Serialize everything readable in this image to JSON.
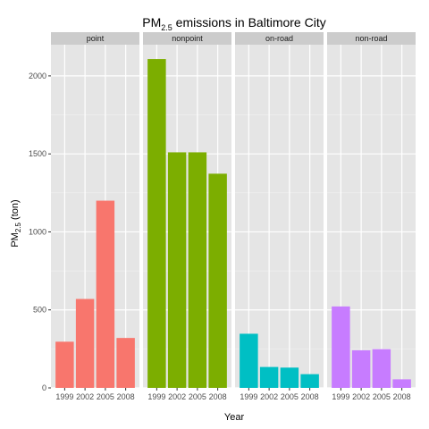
{
  "chart_data": {
    "type": "bar",
    "title": {
      "main": "PM",
      "sub": "2.5",
      "rest": " emissions in Baltimore City"
    },
    "xlabel": "Year",
    "ylabel": {
      "main": "PM",
      "sub": "2.5",
      "rest": " (ton)"
    },
    "ylim": [
      0,
      2200
    ],
    "yticks": [
      0,
      500,
      1000,
      1500,
      2000
    ],
    "ytick_labels": [
      "0",
      "500",
      "1000",
      "1500",
      "2000"
    ],
    "categories": [
      "1999",
      "2002",
      "2005",
      "2008"
    ],
    "grid": true,
    "legend": "none",
    "panels": [
      {
        "name": "point",
        "color": "#F8766D",
        "values": [
          296,
          570,
          1200,
          320
        ]
      },
      {
        "name": "nonpoint",
        "color": "#7CAE00",
        "values": [
          2108,
          1510,
          1510,
          1373
        ]
      },
      {
        "name": "on-road",
        "color": "#00BFC4",
        "values": [
          347,
          134,
          130,
          88
        ]
      },
      {
        "name": "non-road",
        "color": "#C77CFF",
        "values": [
          522,
          241,
          248,
          55
        ]
      }
    ]
  }
}
